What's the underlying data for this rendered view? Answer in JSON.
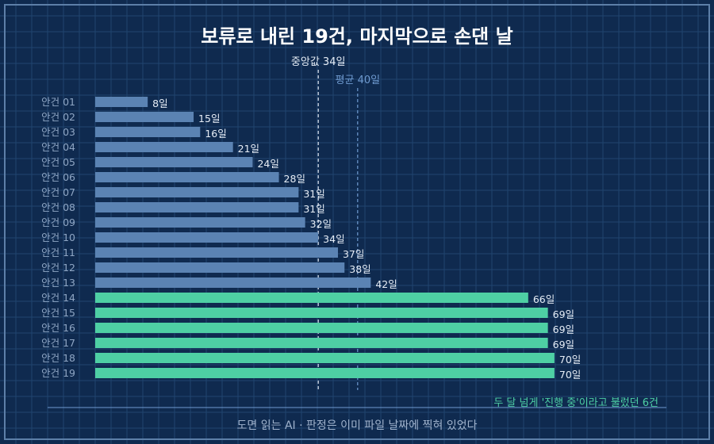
{
  "chart_data": {
    "type": "bar",
    "orientation": "horizontal",
    "title": "보류로 내린 19건, 마지막으로 손댄 날",
    "unit_suffix": "일",
    "categories": [
      "안건 01",
      "안건 02",
      "안건 03",
      "안건 04",
      "안건 05",
      "안건 06",
      "안건 07",
      "안건 08",
      "안건 09",
      "안건 10",
      "안건 11",
      "안건 12",
      "안건 13",
      "안건 14",
      "안건 15",
      "안건 16",
      "안건 17",
      "안건 18",
      "안건 19"
    ],
    "values": [
      8,
      15,
      16,
      21,
      24,
      28,
      31,
      31,
      32,
      34,
      37,
      38,
      42,
      66,
      69,
      69,
      69,
      70,
      70
    ],
    "value_labels": [
      "8일",
      "15일",
      "16일",
      "21일",
      "24일",
      "28일",
      "31일",
      "31일",
      "32일",
      "34일",
      "37일",
      "38일",
      "42일",
      "66일",
      "69일",
      "69일",
      "69일",
      "70일",
      "70일"
    ],
    "highlight_threshold": 60,
    "xlim": [
      0,
      70
    ],
    "reference_lines": [
      {
        "label": "중앙값 34일",
        "value": 34
      },
      {
        "label": "평균 40일",
        "value": 40
      }
    ],
    "annotation": "두 달 넘게 '진행 중'이라고 불렀던 6건",
    "footer": "도면 읽는 AI · 판정은 이미 파일 날짜에 찍혀 있었다",
    "colors": {
      "background": "#0f2a4f",
      "grid": "#21446f",
      "normal_bar": "#5b83b3",
      "highlight_bar": "#4ecfa4",
      "category_text": "#8fa6c4",
      "value_text": "#e6edf6",
      "median_line": "#dfe6f0",
      "mean_line": "#6f9bd1",
      "annotation_text": "#4ecfa4",
      "footer_text": "#9fb2cc",
      "title_text": "#ffffff"
    }
  }
}
